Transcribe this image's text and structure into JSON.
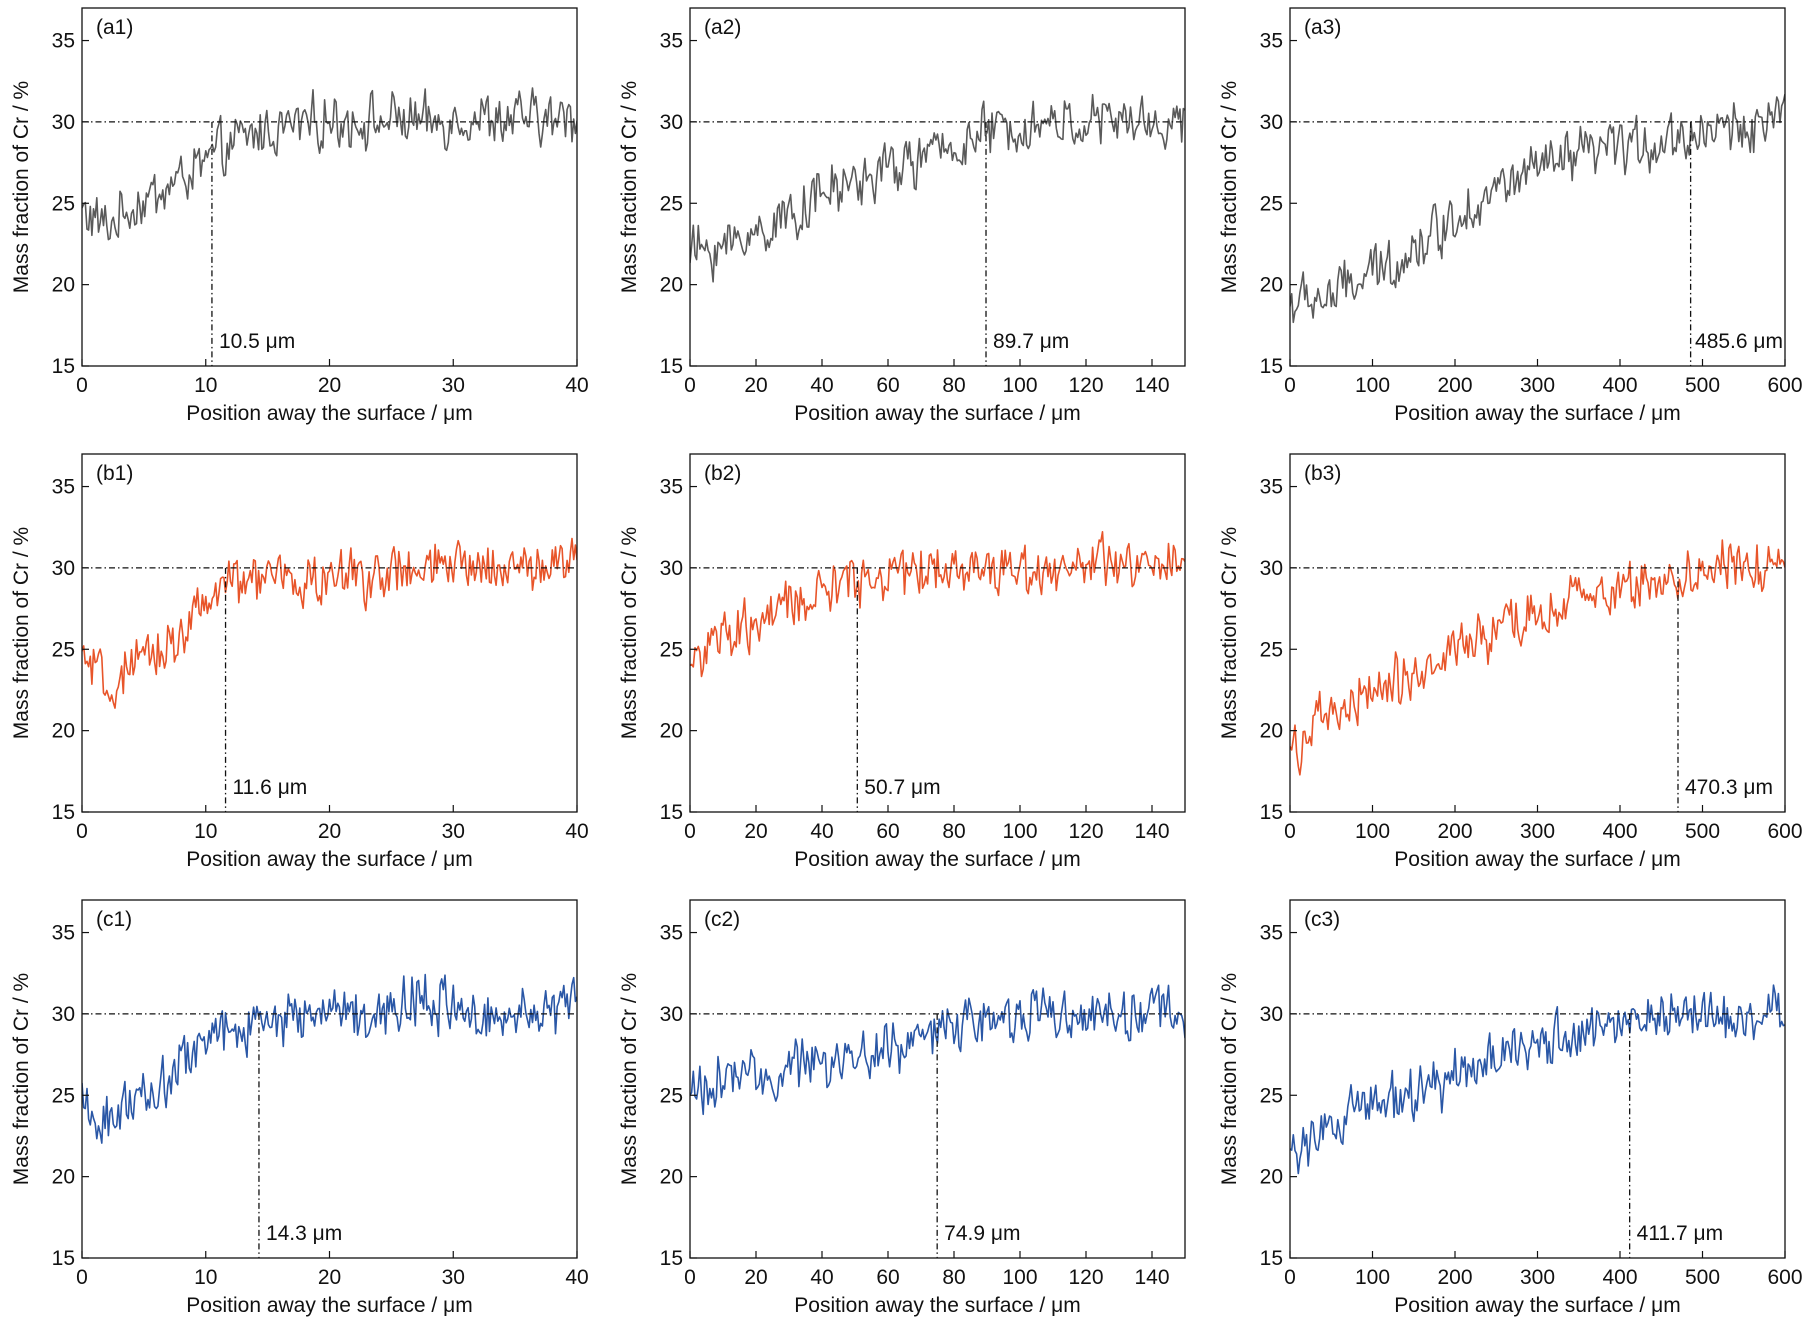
{
  "figure": {
    "panels": [
      {
        "label": "(a1)",
        "ylabel": "Mass fraction of Cr / %",
        "xlabel": "Position away the surface / μm",
        "annotation": "10.5 μm",
        "series_color": "#5a5a5a",
        "xlim": [
          0,
          40
        ],
        "ylim": [
          15,
          37
        ],
        "xticks": [
          0,
          10,
          20,
          30,
          40
        ],
        "yticks": [
          15,
          20,
          25,
          30,
          35
        ],
        "reference_y": 30,
        "marker_x": 10.5
      },
      {
        "label": "(a2)",
        "ylabel": "Mass fraction of Cr / %",
        "xlabel": "Position away the surface / μm",
        "annotation": "89.7 μm",
        "series_color": "#5a5a5a",
        "xlim": [
          0,
          150
        ],
        "ylim": [
          15,
          37
        ],
        "xticks": [
          0,
          20,
          40,
          60,
          80,
          100,
          120,
          140
        ],
        "yticks": [
          15,
          20,
          25,
          30,
          35
        ],
        "reference_y": 30,
        "marker_x": 89.7
      },
      {
        "label": "(a3)",
        "ylabel": "Mass fraction of Cr / %",
        "xlabel": "Position away the surface / μm",
        "annotation": "485.6 μm",
        "series_color": "#5a5a5a",
        "xlim": [
          0,
          600
        ],
        "ylim": [
          15,
          37
        ],
        "xticks": [
          0,
          100,
          200,
          300,
          400,
          500,
          600
        ],
        "yticks": [
          15,
          20,
          25,
          30,
          35
        ],
        "reference_y": 30,
        "marker_x": 485.6
      },
      {
        "label": "(b1)",
        "ylabel": "Mass fraction of Cr / %",
        "xlabel": "Position away the surface / μm",
        "annotation": "11.6 μm",
        "series_color": "#e8552a",
        "xlim": [
          0,
          40
        ],
        "ylim": [
          15,
          37
        ],
        "xticks": [
          0,
          10,
          20,
          30,
          40
        ],
        "yticks": [
          15,
          20,
          25,
          30,
          35
        ],
        "reference_y": 30,
        "marker_x": 11.6
      },
      {
        "label": "(b2)",
        "ylabel": "Mass fraction of Cr / %",
        "xlabel": "Position away the surface / μm",
        "annotation": "50.7 μm",
        "series_color": "#e8552a",
        "xlim": [
          0,
          150
        ],
        "ylim": [
          15,
          37
        ],
        "xticks": [
          0,
          20,
          40,
          60,
          80,
          100,
          120,
          140
        ],
        "yticks": [
          15,
          20,
          25,
          30,
          35
        ],
        "reference_y": 30,
        "marker_x": 50.7
      },
      {
        "label": "(b3)",
        "ylabel": "Mass fraction of Cr / %",
        "xlabel": "Position away the surface / μm",
        "annotation": "470.3 μm",
        "series_color": "#e8552a",
        "xlim": [
          0,
          600
        ],
        "ylim": [
          15,
          37
        ],
        "xticks": [
          0,
          100,
          200,
          300,
          400,
          500,
          600
        ],
        "yticks": [
          15,
          20,
          25,
          30,
          35
        ],
        "reference_y": 30,
        "marker_x": 470.3
      },
      {
        "label": "(c1)",
        "ylabel": "Mass fraction of Cr / %",
        "xlabel": "Position away the surface / μm",
        "annotation": "14.3 μm",
        "series_color": "#2a57a6",
        "xlim": [
          0,
          40
        ],
        "ylim": [
          15,
          37
        ],
        "xticks": [
          0,
          10,
          20,
          30,
          40
        ],
        "yticks": [
          15,
          20,
          25,
          30,
          35
        ],
        "reference_y": 30,
        "marker_x": 14.3
      },
      {
        "label": "(c2)",
        "ylabel": "Mass fraction of Cr / %",
        "xlabel": "Position away the surface / μm",
        "annotation": "74.9 μm",
        "series_color": "#2a57a6",
        "xlim": [
          0,
          150
        ],
        "ylim": [
          15,
          37
        ],
        "xticks": [
          0,
          20,
          40,
          60,
          80,
          100,
          120,
          140
        ],
        "yticks": [
          15,
          20,
          25,
          30,
          35
        ],
        "reference_y": 30,
        "marker_x": 74.9
      },
      {
        "label": "(c3)",
        "ylabel": "Mass fraction of Cr / %",
        "xlabel": "Position away the surface / μm",
        "annotation": "411.7 μm",
        "series_color": "#2a57a6",
        "xlim": [
          0,
          600
        ],
        "ylim": [
          15,
          37
        ],
        "xticks": [
          0,
          100,
          200,
          300,
          400,
          500,
          600
        ],
        "yticks": [
          15,
          20,
          25,
          30,
          35
        ],
        "reference_y": 30,
        "marker_x": 411.7
      }
    ]
  },
  "chart_data": [
    {
      "type": "line",
      "title": "(a1)",
      "xlabel": "Position away the surface / μm",
      "ylabel": "Mass fraction of Cr / %",
      "xlim": [
        0,
        40
      ],
      "ylim": [
        15,
        37
      ],
      "grid": false,
      "x": [
        0,
        2,
        4,
        6,
        8,
        10,
        12,
        14,
        16,
        18,
        20,
        22,
        24,
        26,
        28,
        30,
        32,
        34,
        36,
        38,
        40
      ],
      "series": [
        {
          "values": [
            24.5,
            23.5,
            24.8,
            25.5,
            26.5,
            27.5,
            28.5,
            29.3,
            29.6,
            29.9,
            30.1,
            30.1,
            30.0,
            30.2,
            29.8,
            30.2,
            30.3,
            30.0,
            30.3,
            30.0,
            30.4
          ],
          "color": "#5a5a5a"
        }
      ],
      "annotations": {
        "reference_y": 30,
        "marker_x": 10.5,
        "text": "10.5 μm"
      }
    },
    {
      "type": "line",
      "title": "(a2)",
      "xlabel": "Position away the surface / μm",
      "ylabel": "Mass fraction of Cr / %",
      "xlim": [
        0,
        150
      ],
      "ylim": [
        15,
        37
      ],
      "grid": false,
      "x": [
        0,
        10,
        20,
        30,
        40,
        50,
        60,
        70,
        80,
        90,
        100,
        110,
        120,
        130,
        140,
        150
      ],
      "series": [
        {
          "values": [
            22.0,
            22.3,
            23.2,
            24.3,
            25.5,
            26.3,
            27.0,
            27.7,
            28.5,
            29.3,
            29.7,
            29.9,
            30.0,
            30.0,
            29.9,
            29.8
          ],
          "color": "#5a5a5a"
        }
      ],
      "annotations": {
        "reference_y": 30,
        "marker_x": 89.7,
        "text": "89.7 μm"
      }
    },
    {
      "type": "line",
      "title": "(a3)",
      "xlabel": "Position away the surface / μm",
      "ylabel": "Mass fraction of Cr / %",
      "xlim": [
        0,
        600
      ],
      "ylim": [
        15,
        37
      ],
      "grid": false,
      "x": [
        0,
        50,
        100,
        150,
        200,
        250,
        300,
        350,
        400,
        450,
        500,
        550,
        600
      ],
      "series": [
        {
          "values": [
            18.8,
            19.3,
            20.6,
            22.2,
            24.2,
            25.8,
            27.0,
            27.8,
            28.4,
            28.8,
            29.4,
            29.8,
            30.0
          ],
          "color": "#5a5a5a"
        }
      ],
      "annotations": {
        "reference_y": 30,
        "marker_x": 485.6,
        "text": "485.6 μm"
      }
    },
    {
      "type": "line",
      "title": "(b1)",
      "xlabel": "Position away the surface / μm",
      "ylabel": "Mass fraction of Cr / %",
      "xlim": [
        0,
        40
      ],
      "ylim": [
        15,
        37
      ],
      "grid": false,
      "x": [
        0,
        2,
        4,
        6,
        8,
        10,
        12,
        14,
        16,
        18,
        20,
        22,
        24,
        26,
        28,
        30,
        32,
        34,
        36,
        38,
        40
      ],
      "series": [
        {
          "values": [
            24.5,
            22.5,
            23.5,
            24.8,
            26.0,
            27.8,
            29.0,
            29.3,
            29.3,
            29.2,
            29.3,
            29.5,
            29.6,
            29.6,
            29.8,
            30.0,
            30.2,
            30.2,
            30.0,
            30.2,
            30.8
          ],
          "color": "#e8552a"
        }
      ],
      "annotations": {
        "reference_y": 30,
        "marker_x": 11.6,
        "text": "11.6 μm"
      }
    },
    {
      "type": "line",
      "title": "(b2)",
      "xlabel": "Position away the surface / μm",
      "ylabel": "Mass fraction of Cr / %",
      "xlim": [
        0,
        150
      ],
      "ylim": [
        15,
        37
      ],
      "grid": false,
      "x": [
        0,
        10,
        20,
        30,
        40,
        50,
        60,
        70,
        80,
        90,
        100,
        110,
        120,
        130,
        140,
        150
      ],
      "series": [
        {
          "values": [
            24.5,
            25.5,
            26.5,
            27.5,
            28.5,
            29.3,
            29.7,
            29.9,
            30.0,
            30.0,
            30.0,
            30.0,
            30.1,
            30.1,
            30.0,
            30.0
          ],
          "color": "#e8552a"
        }
      ],
      "annotations": {
        "reference_y": 30,
        "marker_x": 50.7,
        "text": "50.7 μm"
      }
    },
    {
      "type": "line",
      "title": "(b3)",
      "xlabel": "Position away the surface / μm",
      "ylabel": "Mass fraction of Cr / %",
      "xlim": [
        0,
        600
      ],
      "ylim": [
        15,
        37
      ],
      "grid": false,
      "x": [
        0,
        50,
        100,
        150,
        200,
        250,
        300,
        350,
        400,
        450,
        500,
        550,
        600
      ],
      "series": [
        {
          "values": [
            19.0,
            20.8,
            22.3,
            23.5,
            24.8,
            26.0,
            27.0,
            28.0,
            28.8,
            29.3,
            29.8,
            30.0,
            30.2
          ],
          "color": "#e8552a"
        }
      ],
      "annotations": {
        "reference_y": 30,
        "marker_x": 470.3,
        "text": "470.3 μm"
      }
    },
    {
      "type": "line",
      "title": "(c1)",
      "xlabel": "Position away the surface / μm",
      "ylabel": "Mass fraction of Cr / %",
      "xlim": [
        0,
        40
      ],
      "ylim": [
        15,
        37
      ],
      "grid": false,
      "x": [
        0,
        2,
        4,
        6,
        8,
        10,
        12,
        14,
        16,
        18,
        20,
        22,
        24,
        26,
        28,
        30,
        32,
        34,
        36,
        38,
        40
      ],
      "series": [
        {
          "values": [
            24.0,
            23.5,
            24.5,
            25.5,
            27.0,
            28.3,
            29.0,
            29.5,
            29.7,
            29.8,
            30.0,
            30.2,
            30.3,
            30.5,
            31.0,
            30.2,
            30.0,
            30.0,
            30.5,
            30.5,
            30.5
          ],
          "color": "#2a57a6"
        }
      ],
      "annotations": {
        "reference_y": 30,
        "marker_x": 14.3,
        "text": "14.3 μm"
      }
    },
    {
      "type": "line",
      "title": "(c2)",
      "xlabel": "Position away the surface / μm",
      "ylabel": "Mass fraction of Cr / %",
      "xlim": [
        0,
        150
      ],
      "ylim": [
        15,
        37
      ],
      "grid": false,
      "x": [
        0,
        10,
        20,
        30,
        40,
        50,
        60,
        70,
        80,
        90,
        100,
        110,
        120,
        130,
        140,
        150
      ],
      "series": [
        {
          "values": [
            25.3,
            25.8,
            26.2,
            26.5,
            26.9,
            27.4,
            27.9,
            28.6,
            29.3,
            29.8,
            30.0,
            30.1,
            30.1,
            30.0,
            30.0,
            30.0
          ],
          "color": "#2a57a6"
        }
      ],
      "annotations": {
        "reference_y": 30,
        "marker_x": 74.9,
        "text": "74.9 μm"
      }
    },
    {
      "type": "line",
      "title": "(c3)",
      "xlabel": "Position away the surface / μm",
      "ylabel": "Mass fraction of Cr / %",
      "xlim": [
        0,
        600
      ],
      "ylim": [
        15,
        37
      ],
      "grid": false,
      "x": [
        0,
        50,
        100,
        150,
        200,
        250,
        300,
        350,
        400,
        450,
        500,
        550,
        600
      ],
      "series": [
        {
          "values": [
            21.5,
            23.0,
            24.3,
            25.0,
            26.2,
            27.2,
            28.0,
            28.8,
            29.3,
            29.7,
            29.9,
            30.0,
            30.2
          ],
          "color": "#2a57a6"
        }
      ],
      "annotations": {
        "reference_y": 30,
        "marker_x": 411.7,
        "text": "411.7 μm"
      }
    }
  ]
}
